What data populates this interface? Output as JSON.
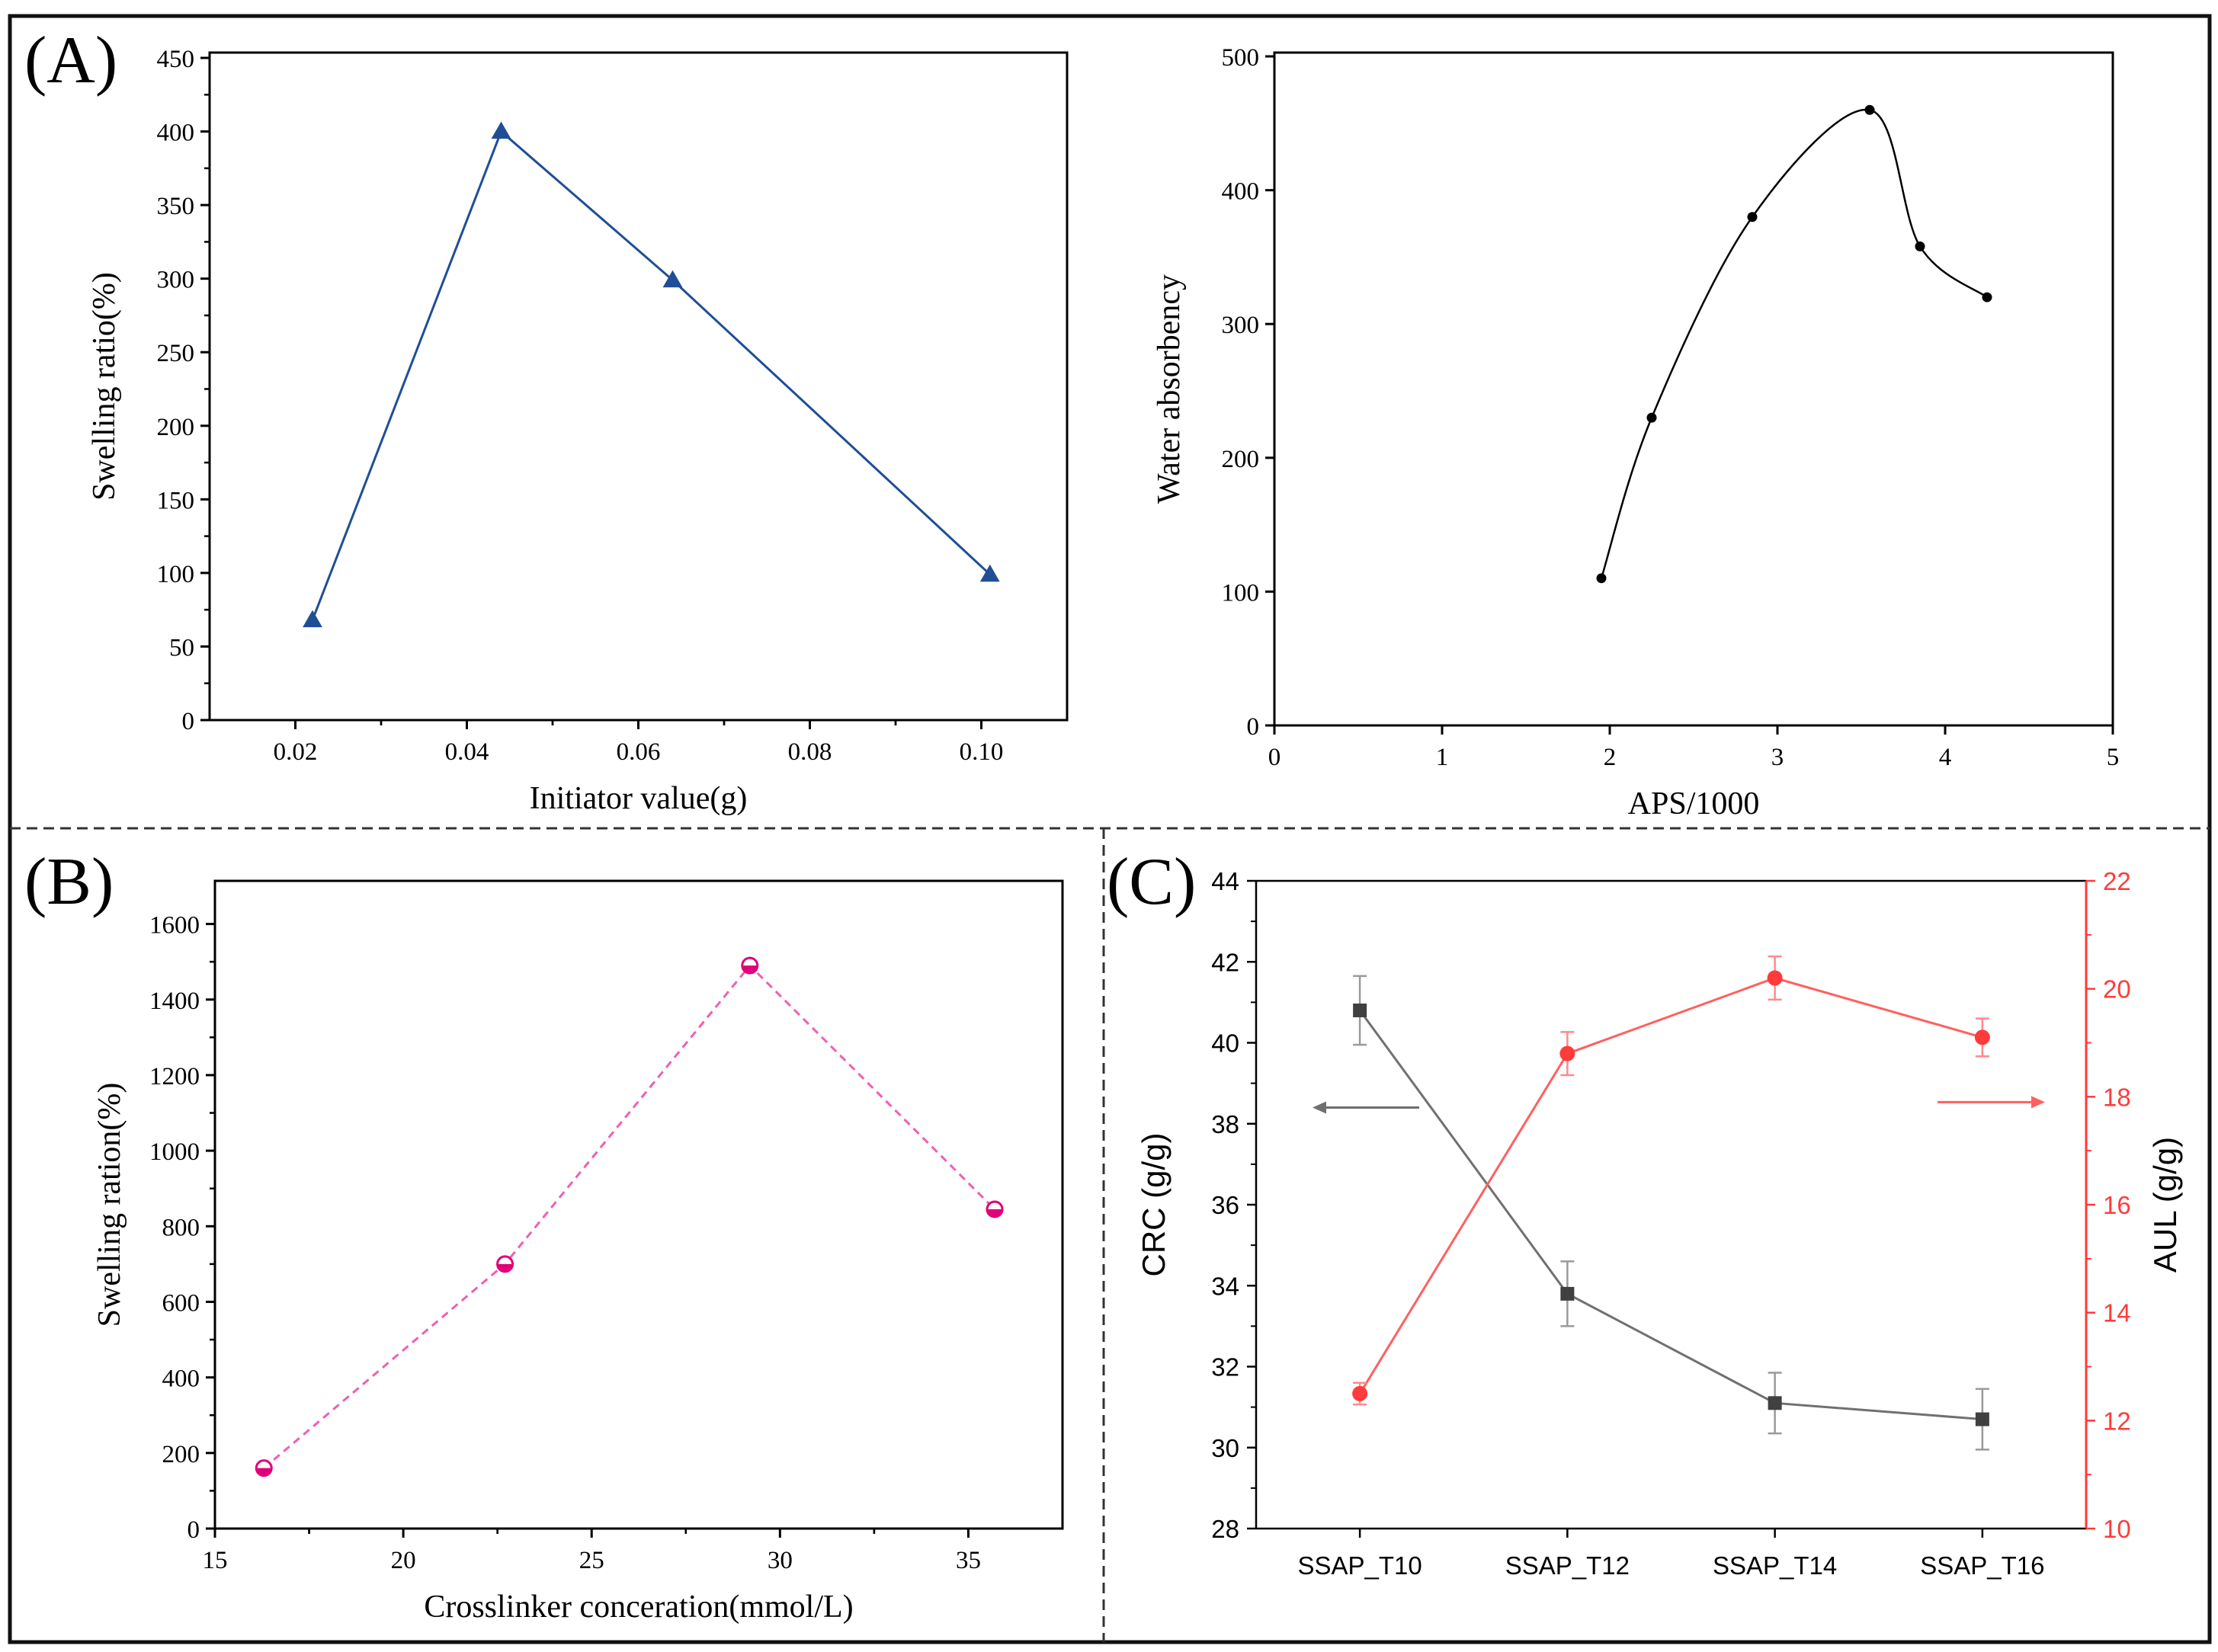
{
  "figure": {
    "panel_labels": [
      "(A)",
      "(B)",
      "(C)"
    ]
  },
  "chart_data": [
    {
      "id": "A1",
      "type": "line",
      "panel": "(A)",
      "xlabel": "Initiator value(g)",
      "ylabel": "Swelling ratio(%)",
      "xlim": [
        0.01,
        0.11
      ],
      "ylim": [
        0,
        450
      ],
      "xticks": [
        0.02,
        0.04,
        0.06,
        0.08,
        0.1
      ],
      "xtick_labels": [
        "0.02",
        "0.04",
        "0.06",
        "0.08",
        "0.10"
      ],
      "yticks": [
        0,
        50,
        100,
        150,
        200,
        250,
        300,
        350,
        400,
        450
      ],
      "ytick_labels": [
        "0",
        "50",
        "100",
        "150",
        "200",
        "250",
        "300",
        "350",
        "400",
        "450"
      ],
      "series": [
        {
          "name": "Swelling ratio",
          "color": "#1f4e96",
          "marker": "triangle",
          "x": [
            0.022,
            0.044,
            0.064,
            0.101
          ],
          "values": [
            68,
            400,
            299,
            99
          ]
        }
      ]
    },
    {
      "id": "A2",
      "type": "line",
      "panel": "(A)",
      "xlabel": "APS/1000",
      "ylabel": "Water absorbency",
      "xlim": [
        0,
        5
      ],
      "ylim": [
        0,
        500
      ],
      "xticks": [
        0,
        1,
        2,
        3,
        4,
        5
      ],
      "xtick_labels": [
        "0",
        "1",
        "2",
        "3",
        "4",
        "5"
      ],
      "yticks": [
        0,
        100,
        200,
        300,
        400,
        500
      ],
      "ytick_labels": [
        "0",
        "100",
        "200",
        "300",
        "400",
        "500"
      ],
      "series": [
        {
          "name": "Water absorbency",
          "color": "#000000",
          "marker": "dot",
          "smooth": true,
          "x": [
            1.95,
            2.25,
            2.85,
            3.55,
            3.85,
            4.25
          ],
          "values": [
            110,
            230,
            380,
            460,
            358,
            320
          ]
        }
      ]
    },
    {
      "id": "B",
      "type": "line",
      "panel": "(B)",
      "xlabel": "Crosslinker conceration(mmol/L)",
      "ylabel": "Swelling ration(%)",
      "xlim": [
        15,
        37.5
      ],
      "ylim": [
        0,
        1700
      ],
      "xticks": [
        15,
        20,
        25,
        30,
        35
      ],
      "xtick_labels": [
        "15",
        "20",
        "25",
        "30",
        "35"
      ],
      "yticks": [
        0,
        200,
        400,
        600,
        800,
        1000,
        1200,
        1400,
        1600
      ],
      "ytick_labels": [
        "0",
        "200",
        "400",
        "600",
        "800",
        "1000",
        "1200",
        "1400",
        "1600"
      ],
      "series": [
        {
          "name": "Swelling ration",
          "color": "#e0007a",
          "line_color": "#ef5fb2",
          "dashed": true,
          "marker": "half-circle",
          "x": [
            16.3,
            22.7,
            29.2,
            35.7
          ],
          "values": [
            160,
            700,
            1490,
            845
          ]
        }
      ]
    },
    {
      "id": "C",
      "type": "line",
      "panel": "(C)",
      "categories": [
        "SSAP_T10",
        "SSAP_T12",
        "SSAP_T14",
        "SSAP_T16"
      ],
      "xlabel": "",
      "ylabel": "CRC (g/g)",
      "ylabel_right": "AUL (g/g)",
      "ylim": [
        28,
        44
      ],
      "ylim_right": [
        10,
        22
      ],
      "yticks": [
        28,
        30,
        32,
        34,
        36,
        38,
        40,
        42,
        44
      ],
      "ytick_labels": [
        "28",
        "30",
        "32",
        "34",
        "36",
        "38",
        "40",
        "42",
        "44"
      ],
      "yticks_right": [
        10,
        12,
        14,
        16,
        18,
        20,
        22
      ],
      "ytick_labels_right": [
        "10",
        "12",
        "14",
        "16",
        "18",
        "20",
        "22"
      ],
      "right_axis_color": "#ff3b3b",
      "series": [
        {
          "name": "CRC (g/g)",
          "axis": "left",
          "color": "#404040",
          "line_color": "#707070",
          "marker": "square",
          "values": [
            40.8,
            33.8,
            31.1,
            30.7
          ],
          "errors": [
            0.85,
            0.8,
            0.75,
            0.75
          ],
          "arrow": "left"
        },
        {
          "name": "AUL (g/g)",
          "axis": "right",
          "color": "#ff3b3b",
          "line_color": "#ff6060",
          "marker": "circle",
          "values": [
            12.5,
            18.8,
            20.2,
            19.1
          ],
          "errors": [
            0.2,
            0.4,
            0.4,
            0.35
          ],
          "arrow": "right"
        }
      ]
    }
  ]
}
